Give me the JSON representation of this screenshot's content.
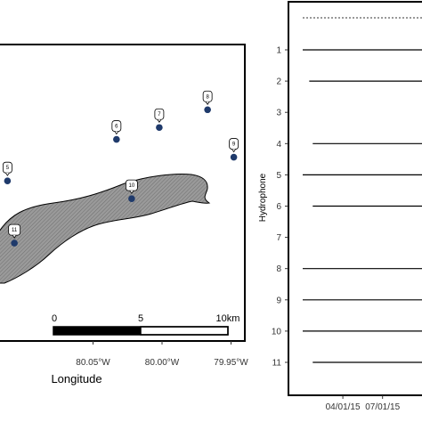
{
  "chart_data": [
    {
      "type": "scatter",
      "title": "",
      "xlabel": "Longitude",
      "ylabel": "",
      "x_ticks": [
        "80.05°W",
        "80.00°W",
        "79.95°W"
      ],
      "x_tick_values": [
        -80.05,
        -80.0,
        -79.95
      ],
      "xlim": [
        -80.12,
        -79.94
      ],
      "ylim": [
        0,
        1
      ],
      "points": [
        {
          "label": "5",
          "lon": -80.112,
          "y": 0.54
        },
        {
          "label": "6",
          "lon": -80.033,
          "y": 0.68
        },
        {
          "label": "7",
          "lon": -80.002,
          "y": 0.72
        },
        {
          "label": "8",
          "lon": -79.967,
          "y": 0.78
        },
        {
          "label": "9",
          "lon": -79.948,
          "y": 0.62
        },
        {
          "label": "10",
          "lon": -80.022,
          "y": 0.48
        },
        {
          "label": "11",
          "lon": -80.107,
          "y": 0.33
        }
      ],
      "scale_bar": {
        "labels": [
          "0",
          "5",
          "10km"
        ]
      },
      "colors": {
        "station": "#1f3a6b",
        "island": "#8c8c8c",
        "outline": "#000000"
      }
    },
    {
      "type": "line",
      "title": "",
      "xlabel": "",
      "ylabel": "Hydrophone",
      "x_ticks": [
        "04/01/15",
        "07/01/15"
      ],
      "categories": [
        "1",
        "2",
        "3",
        "4",
        "5",
        "6",
        "7",
        "8",
        "9",
        "10",
        "11"
      ],
      "deployment_start": [
        "01/01/15",
        "01/16/15",
        null,
        "01/24/15",
        "01/01/15",
        "01/24/15",
        null,
        "01/01/15",
        "01/01/15",
        "01/01/15",
        "01/24/15"
      ],
      "reference_line": "dotted"
    }
  ]
}
